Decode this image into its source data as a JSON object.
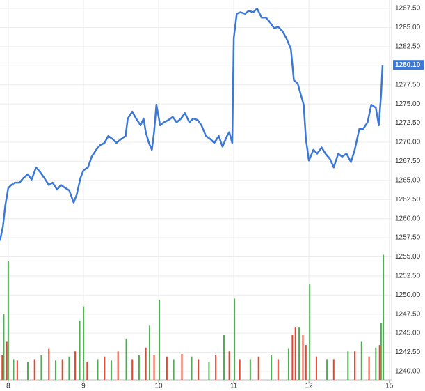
{
  "chart_data": {
    "type": "line",
    "xlim": [
      -0.11,
      5.1
    ],
    "xticks": [
      {
        "value": 0,
        "label": "8"
      },
      {
        "value": 1,
        "label": "9"
      },
      {
        "value": 2,
        "label": "10"
      },
      {
        "value": 3,
        "label": "11"
      },
      {
        "value": 4,
        "label": "12"
      },
      {
        "value": 5.07,
        "label": "15"
      }
    ],
    "ylim": [
      1238.9,
      1288.6
    ],
    "yticks": [
      {
        "value": 1240,
        "label": "1240.00"
      },
      {
        "value": 1242.5,
        "label": "1242.50"
      },
      {
        "value": 1245,
        "label": "1245.00"
      },
      {
        "value": 1247.5,
        "label": "1247.50"
      },
      {
        "value": 1250,
        "label": "1250.00"
      },
      {
        "value": 1252.5,
        "label": "1252.50"
      },
      {
        "value": 1255,
        "label": "1255.00"
      },
      {
        "value": 1257.5,
        "label": "1257.50"
      },
      {
        "value": 1260,
        "label": "1260.00"
      },
      {
        "value": 1262.5,
        "label": "1262.50"
      },
      {
        "value": 1265,
        "label": "1265.00"
      },
      {
        "value": 1267.5,
        "label": "1267.50"
      },
      {
        "value": 1270,
        "label": "1270.00"
      },
      {
        "value": 1272.5,
        "label": "1272.50"
      },
      {
        "value": 1275,
        "label": "1275.00"
      },
      {
        "value": 1277.5,
        "label": "1277.50"
      },
      {
        "value": 1280,
        "label": "1280.00"
      },
      {
        "value": 1282.5,
        "label": "1282.50"
      },
      {
        "value": 1285,
        "label": "1285.00"
      },
      {
        "value": 1287.5,
        "label": "1287.50"
      }
    ],
    "grid": true,
    "series": [
      {
        "color": "#3b78d8",
        "x": [
          -0.11,
          -0.07,
          -0.04,
          0,
          0.04,
          0.09,
          0.15,
          0.2,
          0.26,
          0.31,
          0.37,
          0.43,
          0.48,
          0.54,
          0.59,
          0.65,
          0.7,
          0.76,
          0.81,
          0.87,
          0.91,
          0.96,
          1.0,
          1.06,
          1.11,
          1.17,
          1.22,
          1.28,
          1.33,
          1.39,
          1.44,
          1.5,
          1.56,
          1.59,
          1.65,
          1.7,
          1.76,
          1.8,
          1.83,
          1.87,
          1.91,
          1.94,
          1.97,
          2.02,
          2.07,
          2.13,
          2.19,
          2.24,
          2.3,
          2.35,
          2.41,
          2.46,
          2.52,
          2.57,
          2.63,
          2.69,
          2.74,
          2.8,
          2.85,
          2.91,
          2.94,
          2.98,
          3.0,
          3.04,
          3.09,
          3.15,
          3.2,
          3.26,
          3.31,
          3.37,
          3.43,
          3.48,
          3.54,
          3.59,
          3.65,
          3.7,
          3.76,
          3.8,
          3.85,
          3.89,
          3.93,
          3.96,
          4.0,
          4.06,
          4.11,
          4.17,
          4.22,
          4.28,
          4.33,
          4.39,
          4.44,
          4.5,
          4.56,
          4.61,
          4.67,
          4.72,
          4.78,
          4.83,
          4.89,
          4.93,
          4.96,
          4.98
        ],
        "values": [
          1257.1,
          1259.0,
          1261.7,
          1264.0,
          1264.4,
          1264.7,
          1264.7,
          1265.3,
          1265.8,
          1265.1,
          1266.7,
          1266.0,
          1265.3,
          1264.4,
          1264.7,
          1263.8,
          1264.4,
          1264.0,
          1263.7,
          1262.1,
          1263.1,
          1265.3,
          1266.3,
          1266.7,
          1268.1,
          1269.0,
          1269.6,
          1269.9,
          1270.8,
          1270.4,
          1269.9,
          1270.4,
          1270.8,
          1273.1,
          1274.0,
          1273.1,
          1272.2,
          1273.1,
          1271.3,
          1269.9,
          1269.0,
          1271.3,
          1274.9,
          1272.2,
          1272.6,
          1272.9,
          1273.3,
          1272.6,
          1273.1,
          1273.8,
          1272.6,
          1273.1,
          1272.9,
          1272.2,
          1270.8,
          1270.4,
          1269.9,
          1270.8,
          1269.4,
          1270.8,
          1271.3,
          1269.9,
          1283.6,
          1286.8,
          1287.0,
          1286.8,
          1287.2,
          1287.0,
          1287.5,
          1286.3,
          1286.3,
          1285.7,
          1284.9,
          1285.1,
          1284.5,
          1283.6,
          1282.2,
          1278.1,
          1277.7,
          1276.3,
          1274.9,
          1270.4,
          1267.6,
          1269.0,
          1268.5,
          1269.3,
          1268.5,
          1267.8,
          1266.7,
          1268.5,
          1268.1,
          1268.5,
          1267.4,
          1269.0,
          1271.7,
          1271.7,
          1272.6,
          1274.9,
          1274.5,
          1272.2,
          1276.3,
          1280.1
        ]
      }
    ],
    "last_value_label": "1280.10",
    "y2lim": [
      0,
      100
    ],
    "volume": {
      "up": {
        "color": "#4caf50",
        "x": [
          -0.06,
          0,
          0.07,
          0.26,
          0.44,
          0.63,
          0.81,
          0.95,
          1.0,
          1.19,
          1.37,
          1.57,
          1.74,
          1.88,
          2.01,
          2.2,
          2.44,
          2.67,
          2.87,
          3.01,
          3.22,
          3.5,
          3.73,
          3.87,
          4.01,
          4.24,
          4.52,
          4.7,
          4.89,
          4.96,
          4.99
        ],
        "values": [
          51,
          92,
          16,
          14,
          19,
          15,
          18,
          46,
          57,
          16,
          15,
          32,
          19,
          42,
          62,
          16,
          18,
          14,
          35,
          63,
          16,
          19,
          24,
          41,
          74,
          16,
          22,
          30,
          25,
          44,
          97
        ]
      },
      "down": {
        "color": "#e8452c",
        "x": [
          -0.08,
          -0.02,
          0.12,
          0.35,
          0.54,
          0.72,
          0.89,
          1.05,
          1.28,
          1.46,
          1.65,
          1.83,
          1.94,
          2.11,
          2.31,
          2.53,
          2.76,
          2.94,
          3.08,
          3.33,
          3.59,
          3.78,
          3.82,
          3.92,
          3.96,
          4.1,
          4.33,
          4.61,
          4.8,
          4.94
        ],
        "values": [
          19,
          30,
          15,
          16,
          24,
          16,
          22,
          14,
          18,
          22,
          16,
          25,
          19,
          18,
          20,
          16,
          19,
          22,
          16,
          18,
          16,
          35,
          41,
          35,
          27,
          18,
          16,
          22,
          18,
          27
        ]
      }
    }
  }
}
